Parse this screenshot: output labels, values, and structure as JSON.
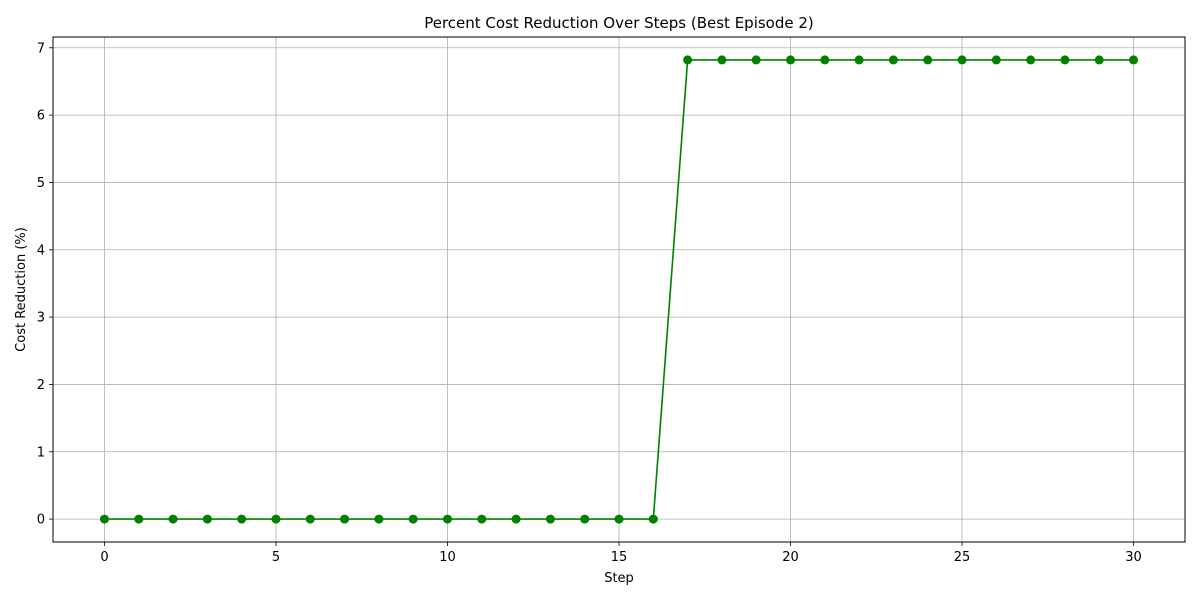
{
  "chart_data": {
    "type": "line",
    "title": "Percent Cost Reduction Over Steps (Best Episode 2)",
    "xlabel": "Step",
    "ylabel": "Cost Reduction (%)",
    "xlim": [
      -1.5,
      31.5
    ],
    "ylim": [
      -0.34,
      7.16
    ],
    "xticks": [
      0,
      5,
      10,
      15,
      20,
      25,
      30
    ],
    "yticks": [
      0,
      1,
      2,
      3,
      4,
      5,
      6,
      7
    ],
    "grid": true,
    "series": [
      {
        "color": "#008000",
        "marker": "circle",
        "x": [
          0,
          1,
          2,
          3,
          4,
          5,
          6,
          7,
          8,
          9,
          10,
          11,
          12,
          13,
          14,
          15,
          16,
          17,
          18,
          19,
          20,
          21,
          22,
          23,
          24,
          25,
          26,
          27,
          28,
          29,
          30
        ],
        "y": [
          0,
          0,
          0,
          0,
          0,
          0,
          0,
          0,
          0,
          0,
          0,
          0,
          0,
          0,
          0,
          0,
          0,
          6.82,
          6.82,
          6.82,
          6.82,
          6.82,
          6.82,
          6.82,
          6.82,
          6.82,
          6.82,
          6.82,
          6.82,
          6.82,
          6.82
        ]
      }
    ]
  }
}
